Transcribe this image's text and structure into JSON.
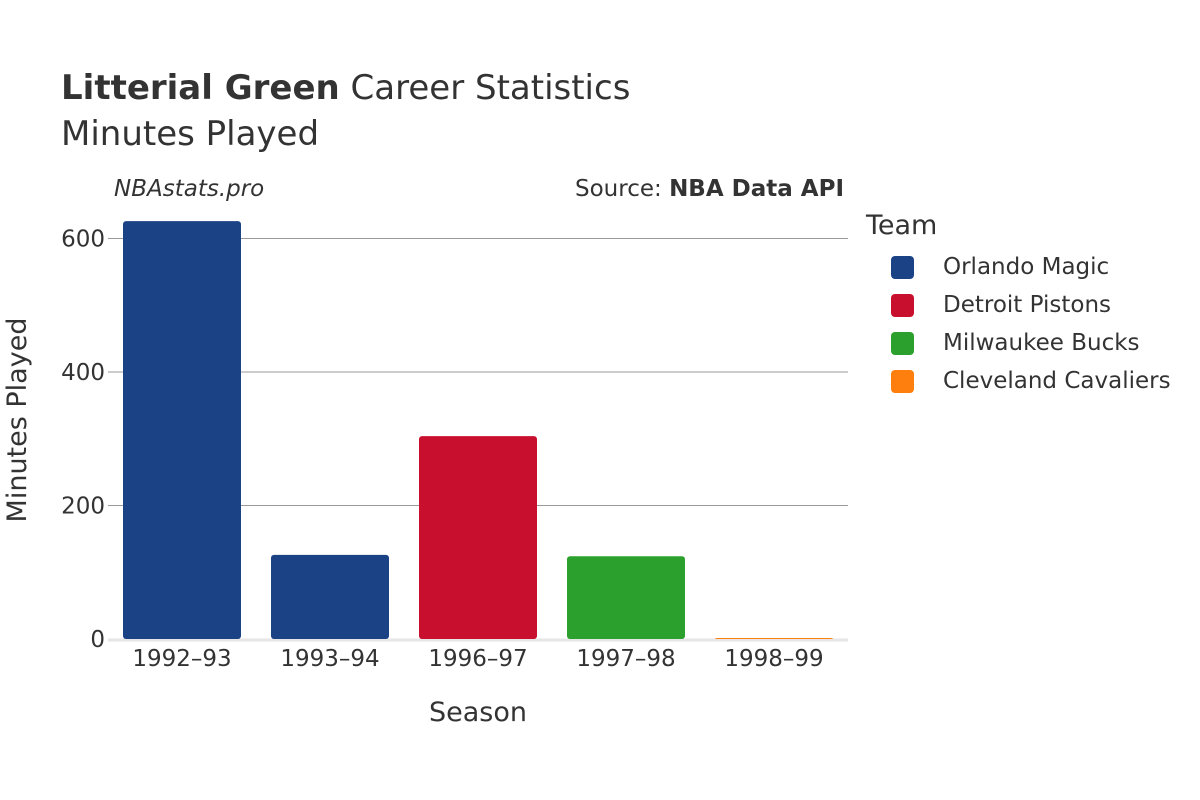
{
  "header": {
    "title_bold": "Litterial Green",
    "title_rest": " Career Statistics",
    "subtitle": "Minutes Played",
    "brand": "NBAstats.pro",
    "source_prefix": "Source: ",
    "source_name": "NBA Data API"
  },
  "legend": {
    "title": "Team",
    "items": [
      {
        "label": "Orlando Magic",
        "color": "#1c4286"
      },
      {
        "label": "Detroit Pistons",
        "color": "#c8102e"
      },
      {
        "label": "Milwaukee Bucks",
        "color": "#2ca02c"
      },
      {
        "label": "Cleveland Cavaliers",
        "color": "#ff7f0e"
      }
    ]
  },
  "chart_data": {
    "type": "bar",
    "xlabel": "Season",
    "ylabel": "Minutes Played",
    "ylim": [
      0,
      650
    ],
    "yticks": [
      0,
      200,
      400,
      600
    ],
    "grid": true,
    "legend_position": "right",
    "categories": [
      "1992–93",
      "1993–94",
      "1996–97",
      "1997–98",
      "1998–99"
    ],
    "bars": [
      {
        "category": "1992–93",
        "team": "Orlando Magic",
        "value": 626,
        "color": "#1c4286"
      },
      {
        "category": "1993–94",
        "team": "Orlando Magic",
        "value": 126,
        "color": "#1c4286"
      },
      {
        "category": "1996–97",
        "team": "Detroit Pistons",
        "value": 304,
        "color": "#c8102e"
      },
      {
        "category": "1997–98",
        "team": "Milwaukee Bucks",
        "value": 124,
        "color": "#2ca02c"
      },
      {
        "category": "1998–99",
        "team": "Cleveland Cavaliers",
        "value": 1,
        "color": "#ff7f0e"
      }
    ]
  }
}
